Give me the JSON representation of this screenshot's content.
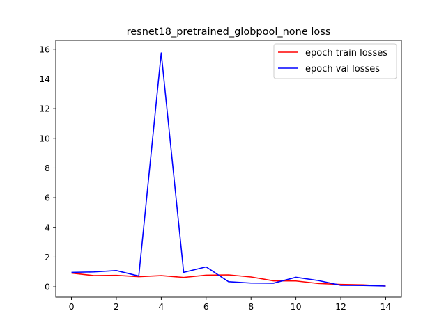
{
  "chart_data": {
    "type": "line",
    "title": "resnet18_pretrained_globpool_none loss",
    "xlabel": "",
    "ylabel": "",
    "x": [
      0,
      1,
      2,
      3,
      4,
      5,
      6,
      7,
      8,
      9,
      10,
      11,
      12,
      13,
      14
    ],
    "xlim": [
      -0.7,
      14.7
    ],
    "ylim": [
      -0.7,
      16.6
    ],
    "xticks": [
      0,
      2,
      4,
      6,
      8,
      10,
      12,
      14
    ],
    "yticks": [
      0,
      2,
      4,
      6,
      8,
      10,
      12,
      14,
      16
    ],
    "grid": false,
    "legend_position": "top-right",
    "series": [
      {
        "name": "epoch train losses",
        "color": "#ff0000",
        "values": [
          0.92,
          0.75,
          0.77,
          0.68,
          0.75,
          0.63,
          0.78,
          0.8,
          0.66,
          0.4,
          0.39,
          0.22,
          0.16,
          0.13,
          0.05
        ]
      },
      {
        "name": "epoch val losses",
        "color": "#0000ff",
        "values": [
          0.97,
          1.0,
          1.09,
          0.72,
          15.75,
          0.97,
          1.34,
          0.34,
          0.25,
          0.24,
          0.64,
          0.42,
          0.1,
          0.09,
          0.05
        ]
      }
    ]
  }
}
